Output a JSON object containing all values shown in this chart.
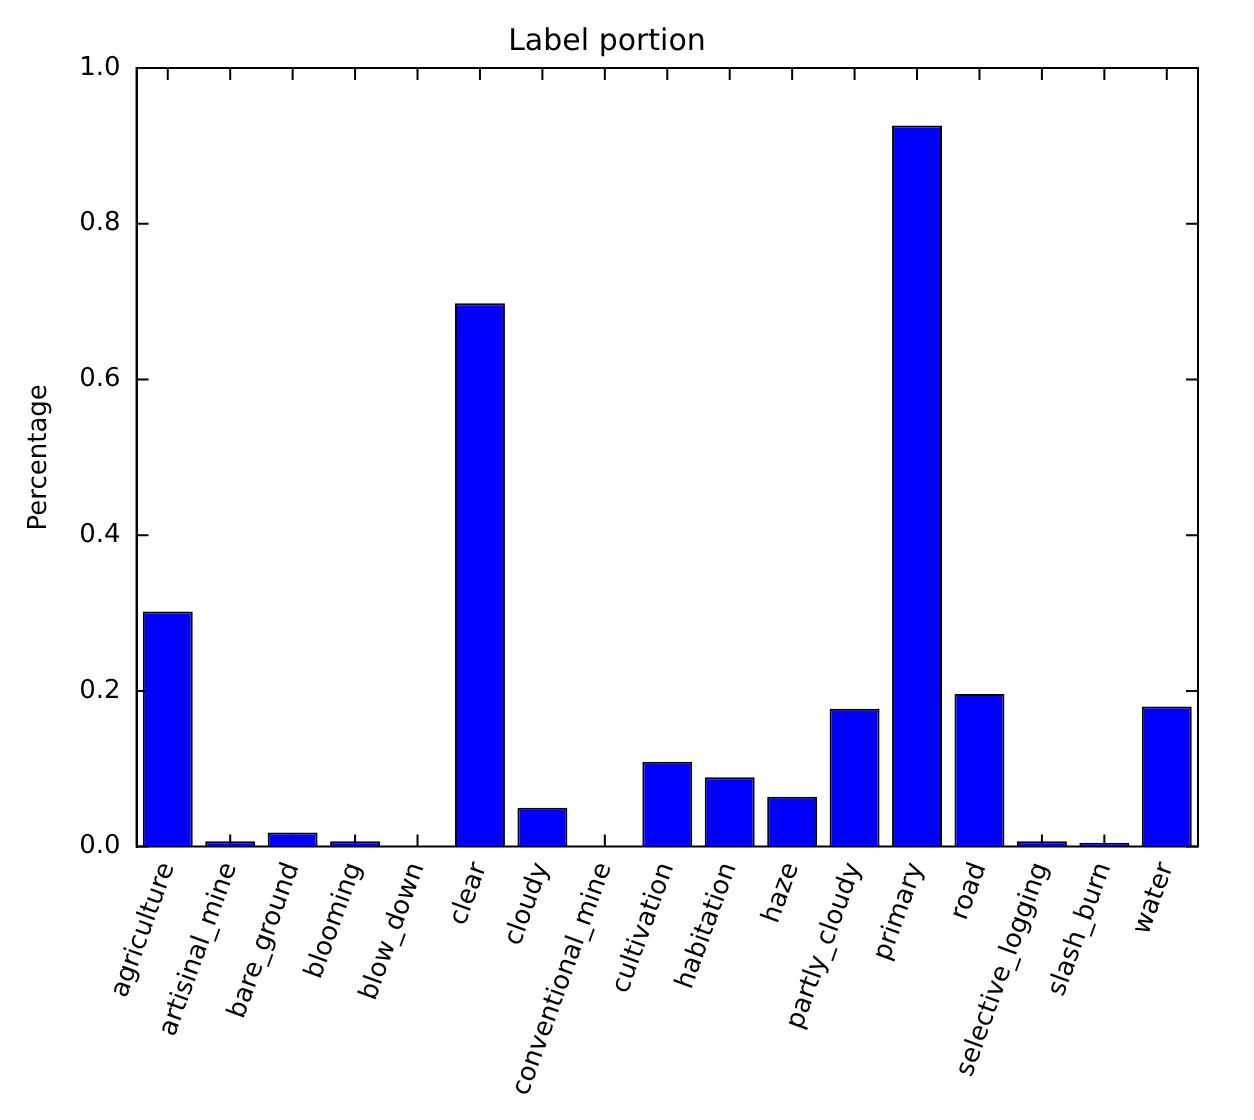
{
  "chart_data": {
    "type": "bar",
    "title": "Label portion",
    "ylabel": "Percentage",
    "categories": [
      "agriculture",
      "artisinal_mine",
      "bare_ground",
      "blooming",
      "blow_down",
      "clear",
      "cloudy",
      "conventional_mine",
      "cultivation",
      "habitation",
      "haze",
      "partly_cloudy",
      "primary",
      "road",
      "selective_logging",
      "slash_burn",
      "water"
    ],
    "values": [
      0.302,
      0.007,
      0.018,
      0.007,
      null,
      0.698,
      0.05,
      null,
      0.109,
      0.089,
      0.064,
      0.177,
      0.926,
      0.196,
      0.007,
      0.005,
      0.18
    ],
    "color": "#0000ff",
    "ylim": [
      0,
      1
    ],
    "yticks": [
      {
        "value": 0,
        "label": "0.0"
      },
      {
        "value": 0.2,
        "label": "0.2"
      },
      {
        "value": 0.4,
        "label": "0.4"
      },
      {
        "value": 0.6,
        "label": "0.6"
      },
      {
        "value": 0.8,
        "label": "0.8"
      },
      {
        "value": 1,
        "label": "1.0"
      }
    ],
    "grid": false,
    "legend": false
  }
}
